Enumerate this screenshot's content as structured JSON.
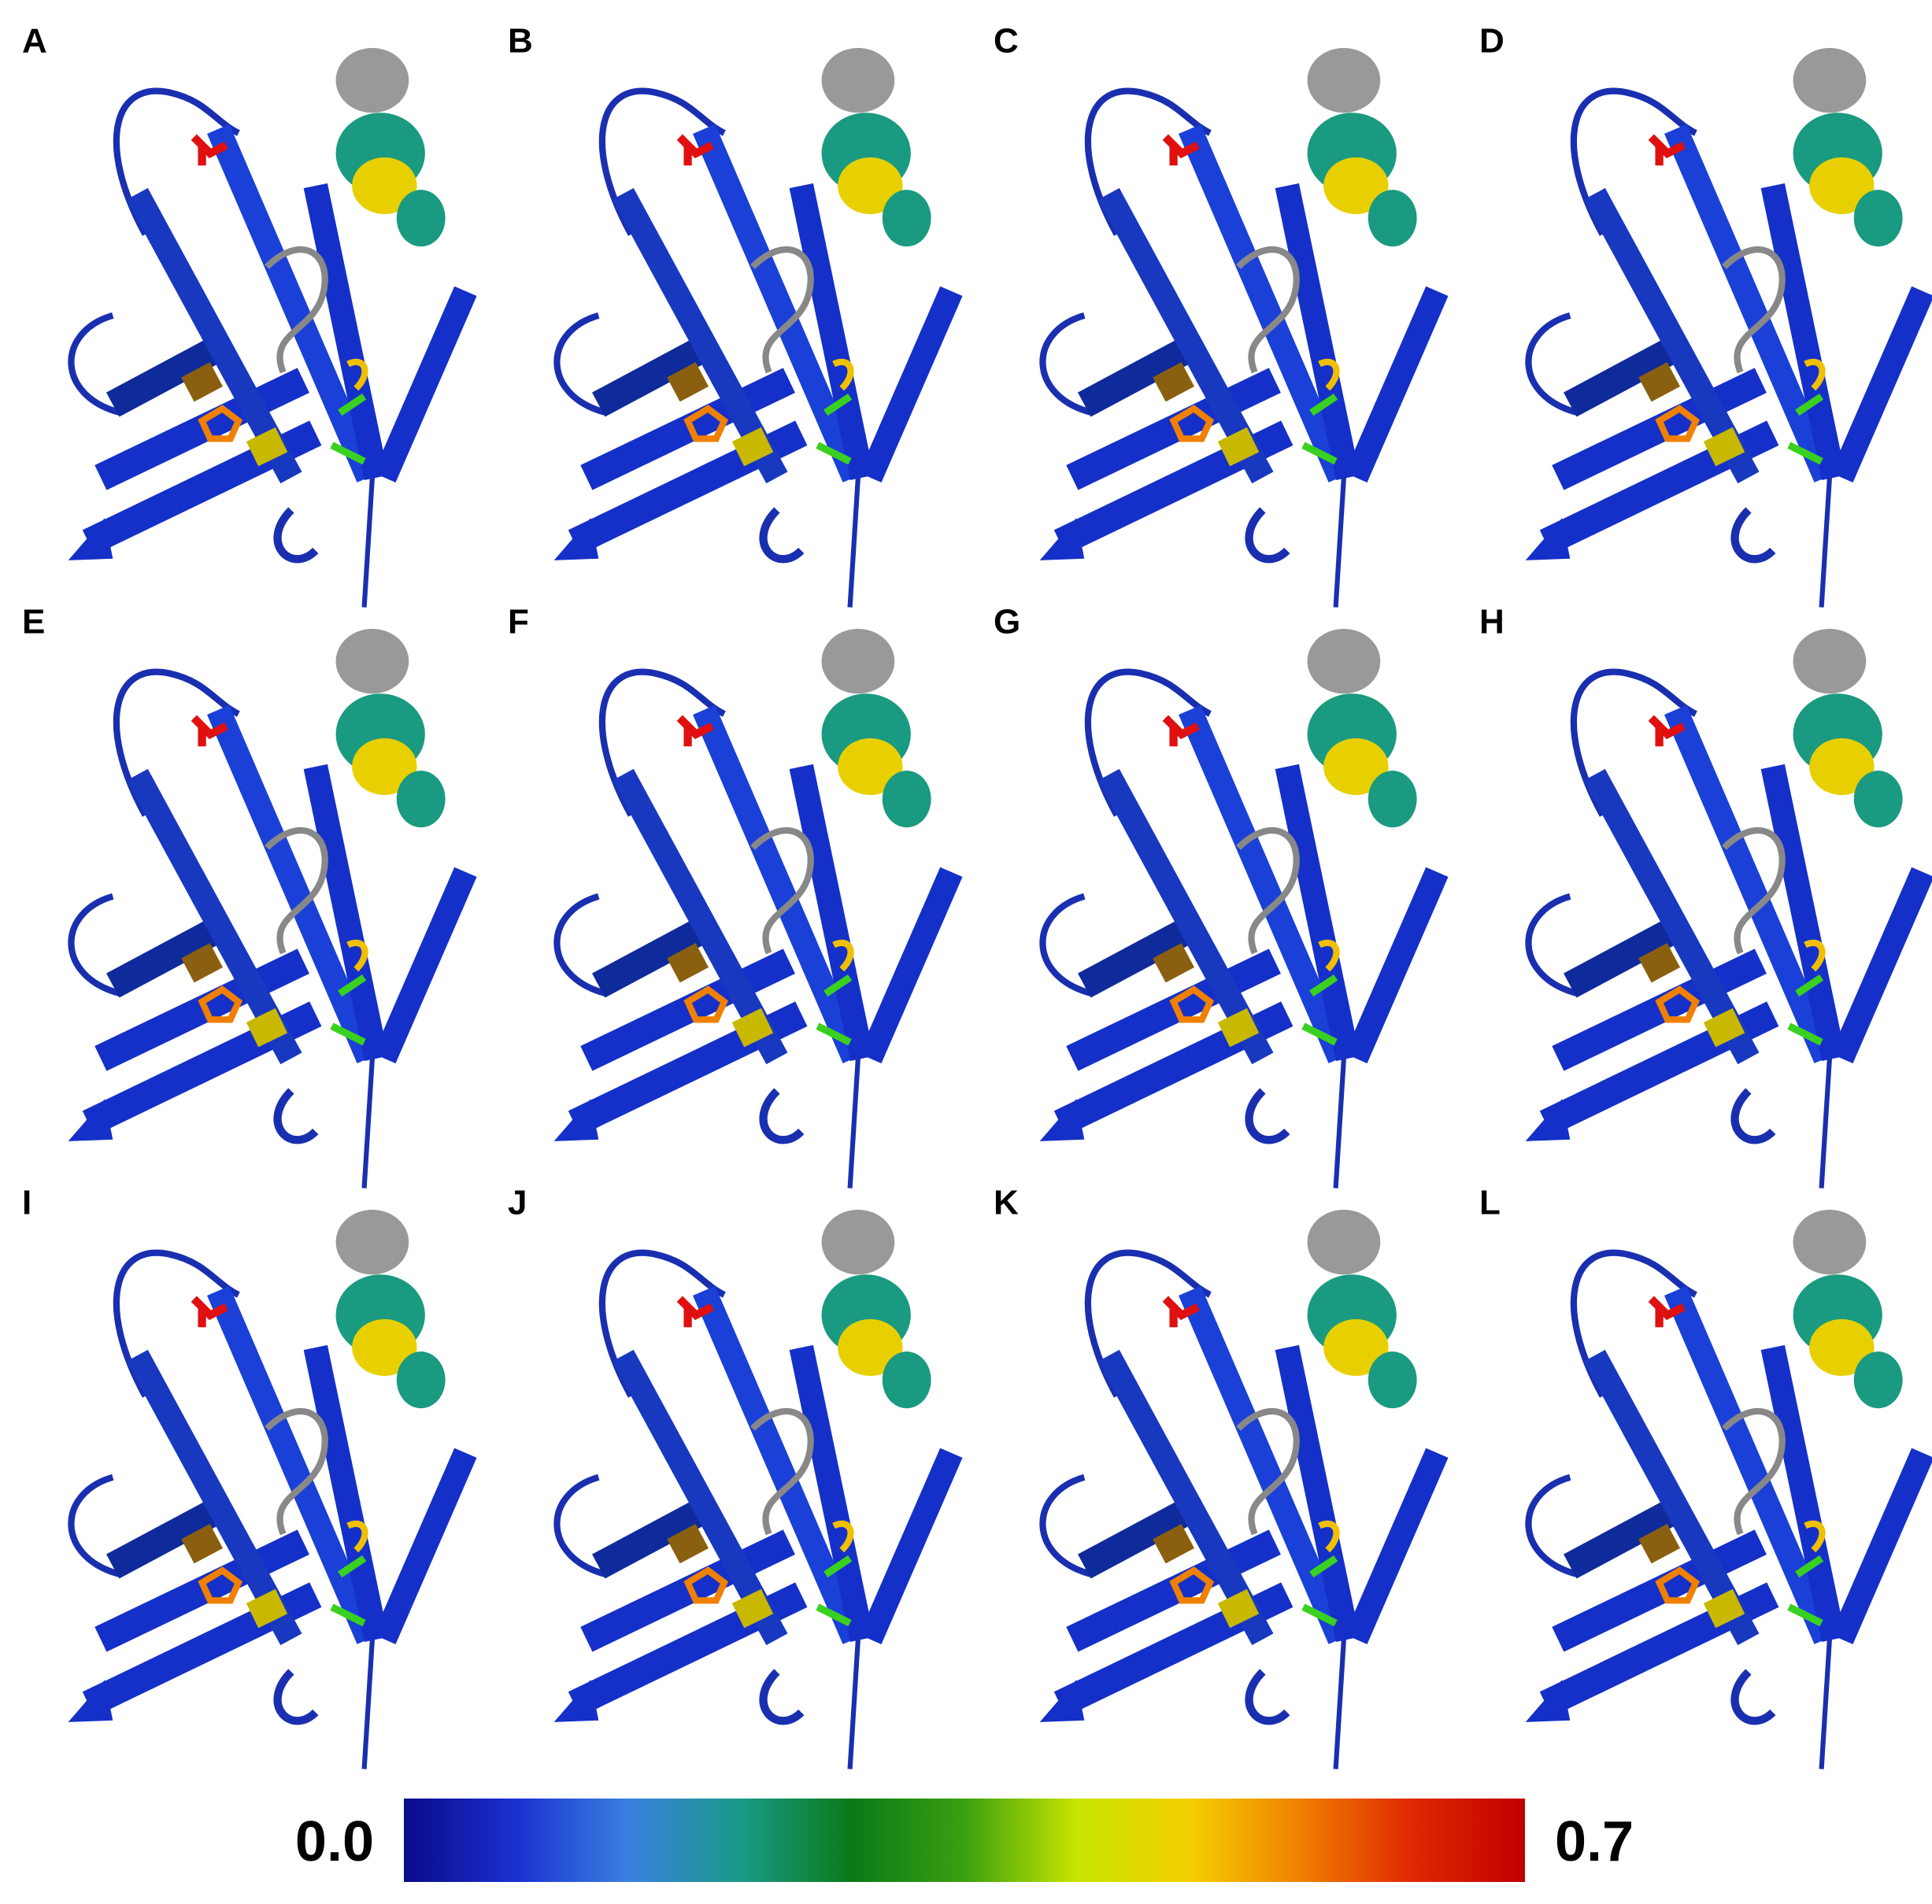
{
  "panels": [
    {
      "label": "A"
    },
    {
      "label": "B"
    },
    {
      "label": "C"
    },
    {
      "label": "D"
    },
    {
      "label": "E"
    },
    {
      "label": "F"
    },
    {
      "label": "G"
    },
    {
      "label": "H"
    },
    {
      "label": "I"
    },
    {
      "label": "J"
    },
    {
      "label": "K"
    },
    {
      "label": "L"
    }
  ],
  "colorbar": {
    "min": {
      "value": 0,
      "label": "0.0"
    },
    "max": {
      "value": 0.7,
      "label": "0.7"
    },
    "colors": [
      "#0b0b8a",
      "#1a30d0",
      "#3a80e0",
      "#1a9a88",
      "#0a7a18",
      "#3aa010",
      "#c8e400",
      "#f2d000",
      "#f08000",
      "#e02800",
      "#c00000"
    ]
  }
}
